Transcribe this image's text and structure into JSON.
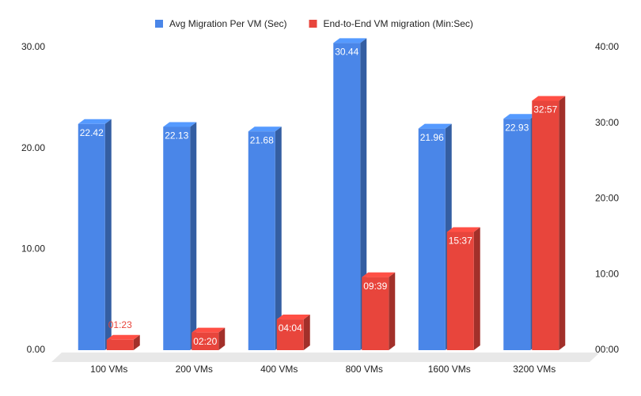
{
  "chart_data": {
    "type": "bar3d",
    "categories": [
      "100 VMs",
      "200 VMs",
      "400 VMs",
      "800 VMs",
      "1600 VMs",
      "3200 VMs"
    ],
    "series": [
      {
        "name": "Avg Migration Per VM (Sec)",
        "color": "#4a86e8",
        "values": [
          22.42,
          22.13,
          21.68,
          30.44,
          21.96,
          22.93
        ]
      },
      {
        "name": "End-to-End VM migration (Min:Sec)",
        "color": "#e8453c",
        "axis": "y2",
        "values": [
          1.383,
          2.333,
          4.067,
          9.65,
          15.617,
          32.95
        ],
        "value_labels": [
          "01:23",
          "02:20",
          "04:04",
          "09:39",
          "15:37",
          "32:57"
        ]
      }
    ],
    "ylim": [
      0,
      30
    ],
    "yticks": [
      {
        "value": 0,
        "label": "0.00"
      },
      {
        "value": 10,
        "label": "10.00"
      },
      {
        "value": 20,
        "label": "20.00"
      },
      {
        "value": 30,
        "label": "30.00"
      }
    ],
    "y2lim": [
      0,
      40
    ],
    "y2ticks": [
      {
        "value": 0,
        "label": "00:00"
      },
      {
        "value": 10,
        "label": "10:00"
      },
      {
        "value": 20,
        "label": "20:00"
      },
      {
        "value": 30,
        "label": "30:00"
      },
      {
        "value": 40,
        "label": "40:00"
      }
    ],
    "legend": "top"
  }
}
